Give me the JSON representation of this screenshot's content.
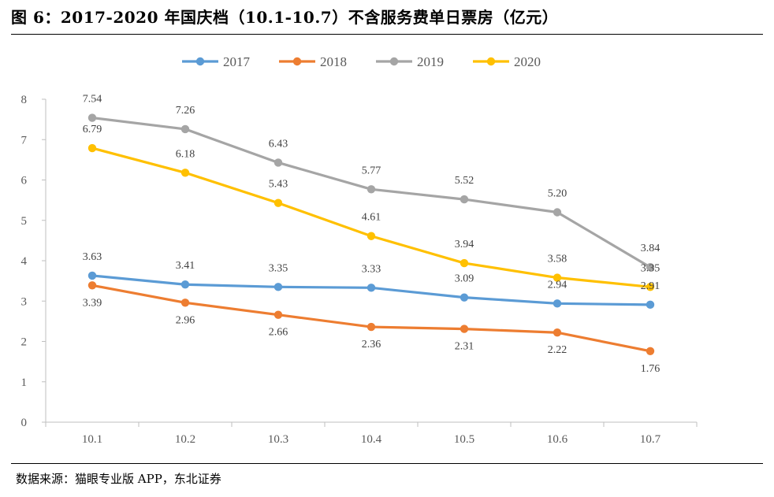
{
  "figure": {
    "title": "图 6：2017-2020 年国庆档（10.1-10.7）不含服务费单日票房（亿元）",
    "source": "数据来源：猫眼专业版 APP，东北证券"
  },
  "colors": {
    "2017": "#5B9BD5",
    "2018": "#ED7D31",
    "2019": "#A5A5A5",
    "2020": "#FFC000",
    "axis": "#BFBFBF"
  },
  "chart_data": {
    "type": "line",
    "title": "2017-2020 年国庆档（10.1-10.7）不含服务费单日票房（亿元）",
    "xlabel": "",
    "ylabel": "",
    "categories": [
      "10.1",
      "10.2",
      "10.3",
      "10.4",
      "10.5",
      "10.6",
      "10.7"
    ],
    "ylim": [
      0,
      8
    ],
    "yticks": [
      0,
      1,
      2,
      3,
      4,
      5,
      6,
      7,
      8
    ],
    "legend_position": "top-center",
    "grid": false,
    "series": [
      {
        "name": "2017",
        "color": "#5B9BD5",
        "values": [
          3.63,
          3.41,
          3.35,
          3.33,
          3.09,
          2.94,
          2.91
        ],
        "labels": [
          "3.63",
          "3.41",
          "3.35",
          "3.33",
          "3.09",
          "2.94",
          "2.91"
        ]
      },
      {
        "name": "2018",
        "color": "#ED7D31",
        "values": [
          3.39,
          2.96,
          2.66,
          2.36,
          2.31,
          2.22,
          1.76
        ],
        "labels": [
          "3.39",
          "2.96",
          "2.66",
          "2.36",
          "2.31",
          "2.22",
          "1.76"
        ]
      },
      {
        "name": "2019",
        "color": "#A5A5A5",
        "values": [
          7.54,
          7.26,
          6.43,
          5.77,
          5.52,
          5.2,
          3.84
        ],
        "labels": [
          "7.54",
          "7.26",
          "6.43",
          "5.77",
          "5.52",
          "5.20",
          "3.84"
        ]
      },
      {
        "name": "2020",
        "color": "#FFC000",
        "values": [
          6.79,
          6.18,
          5.43,
          4.61,
          3.94,
          3.58,
          3.35
        ],
        "labels": [
          "6.79",
          "6.18",
          "5.43",
          "4.61",
          "3.94",
          "3.58",
          "3.35"
        ]
      }
    ]
  }
}
